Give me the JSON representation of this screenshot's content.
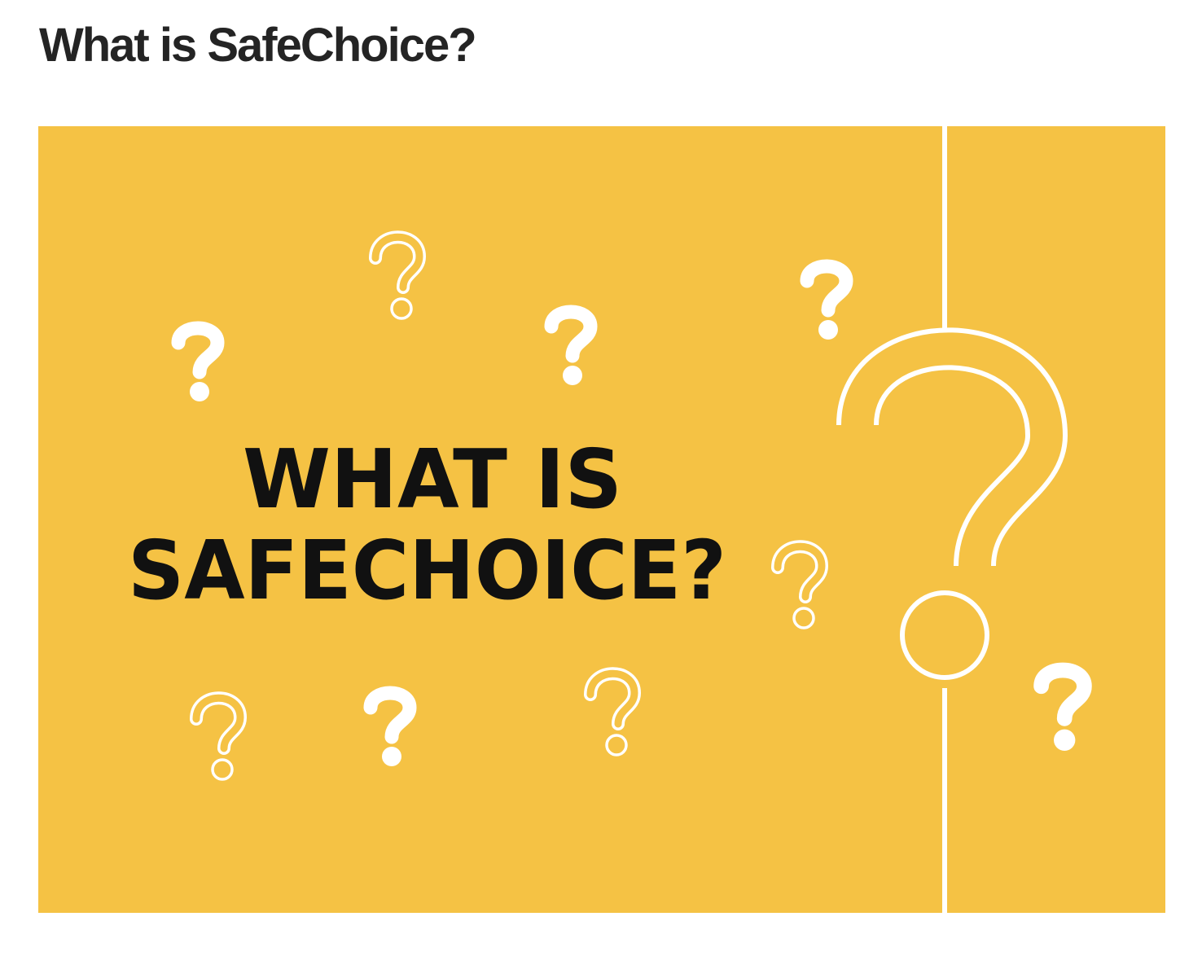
{
  "article": {
    "heading": "What is SafeChoice?"
  },
  "hero_image": {
    "background_color": "#F5C244",
    "title_line_1": "WHAT IS",
    "title_line_2": "SAFECHOICE?",
    "title_color": "#111111",
    "ornament_color": "#ffffff",
    "ornaments": [
      "question-mark-outline-icon",
      "question-mark-solid-icon"
    ]
  }
}
